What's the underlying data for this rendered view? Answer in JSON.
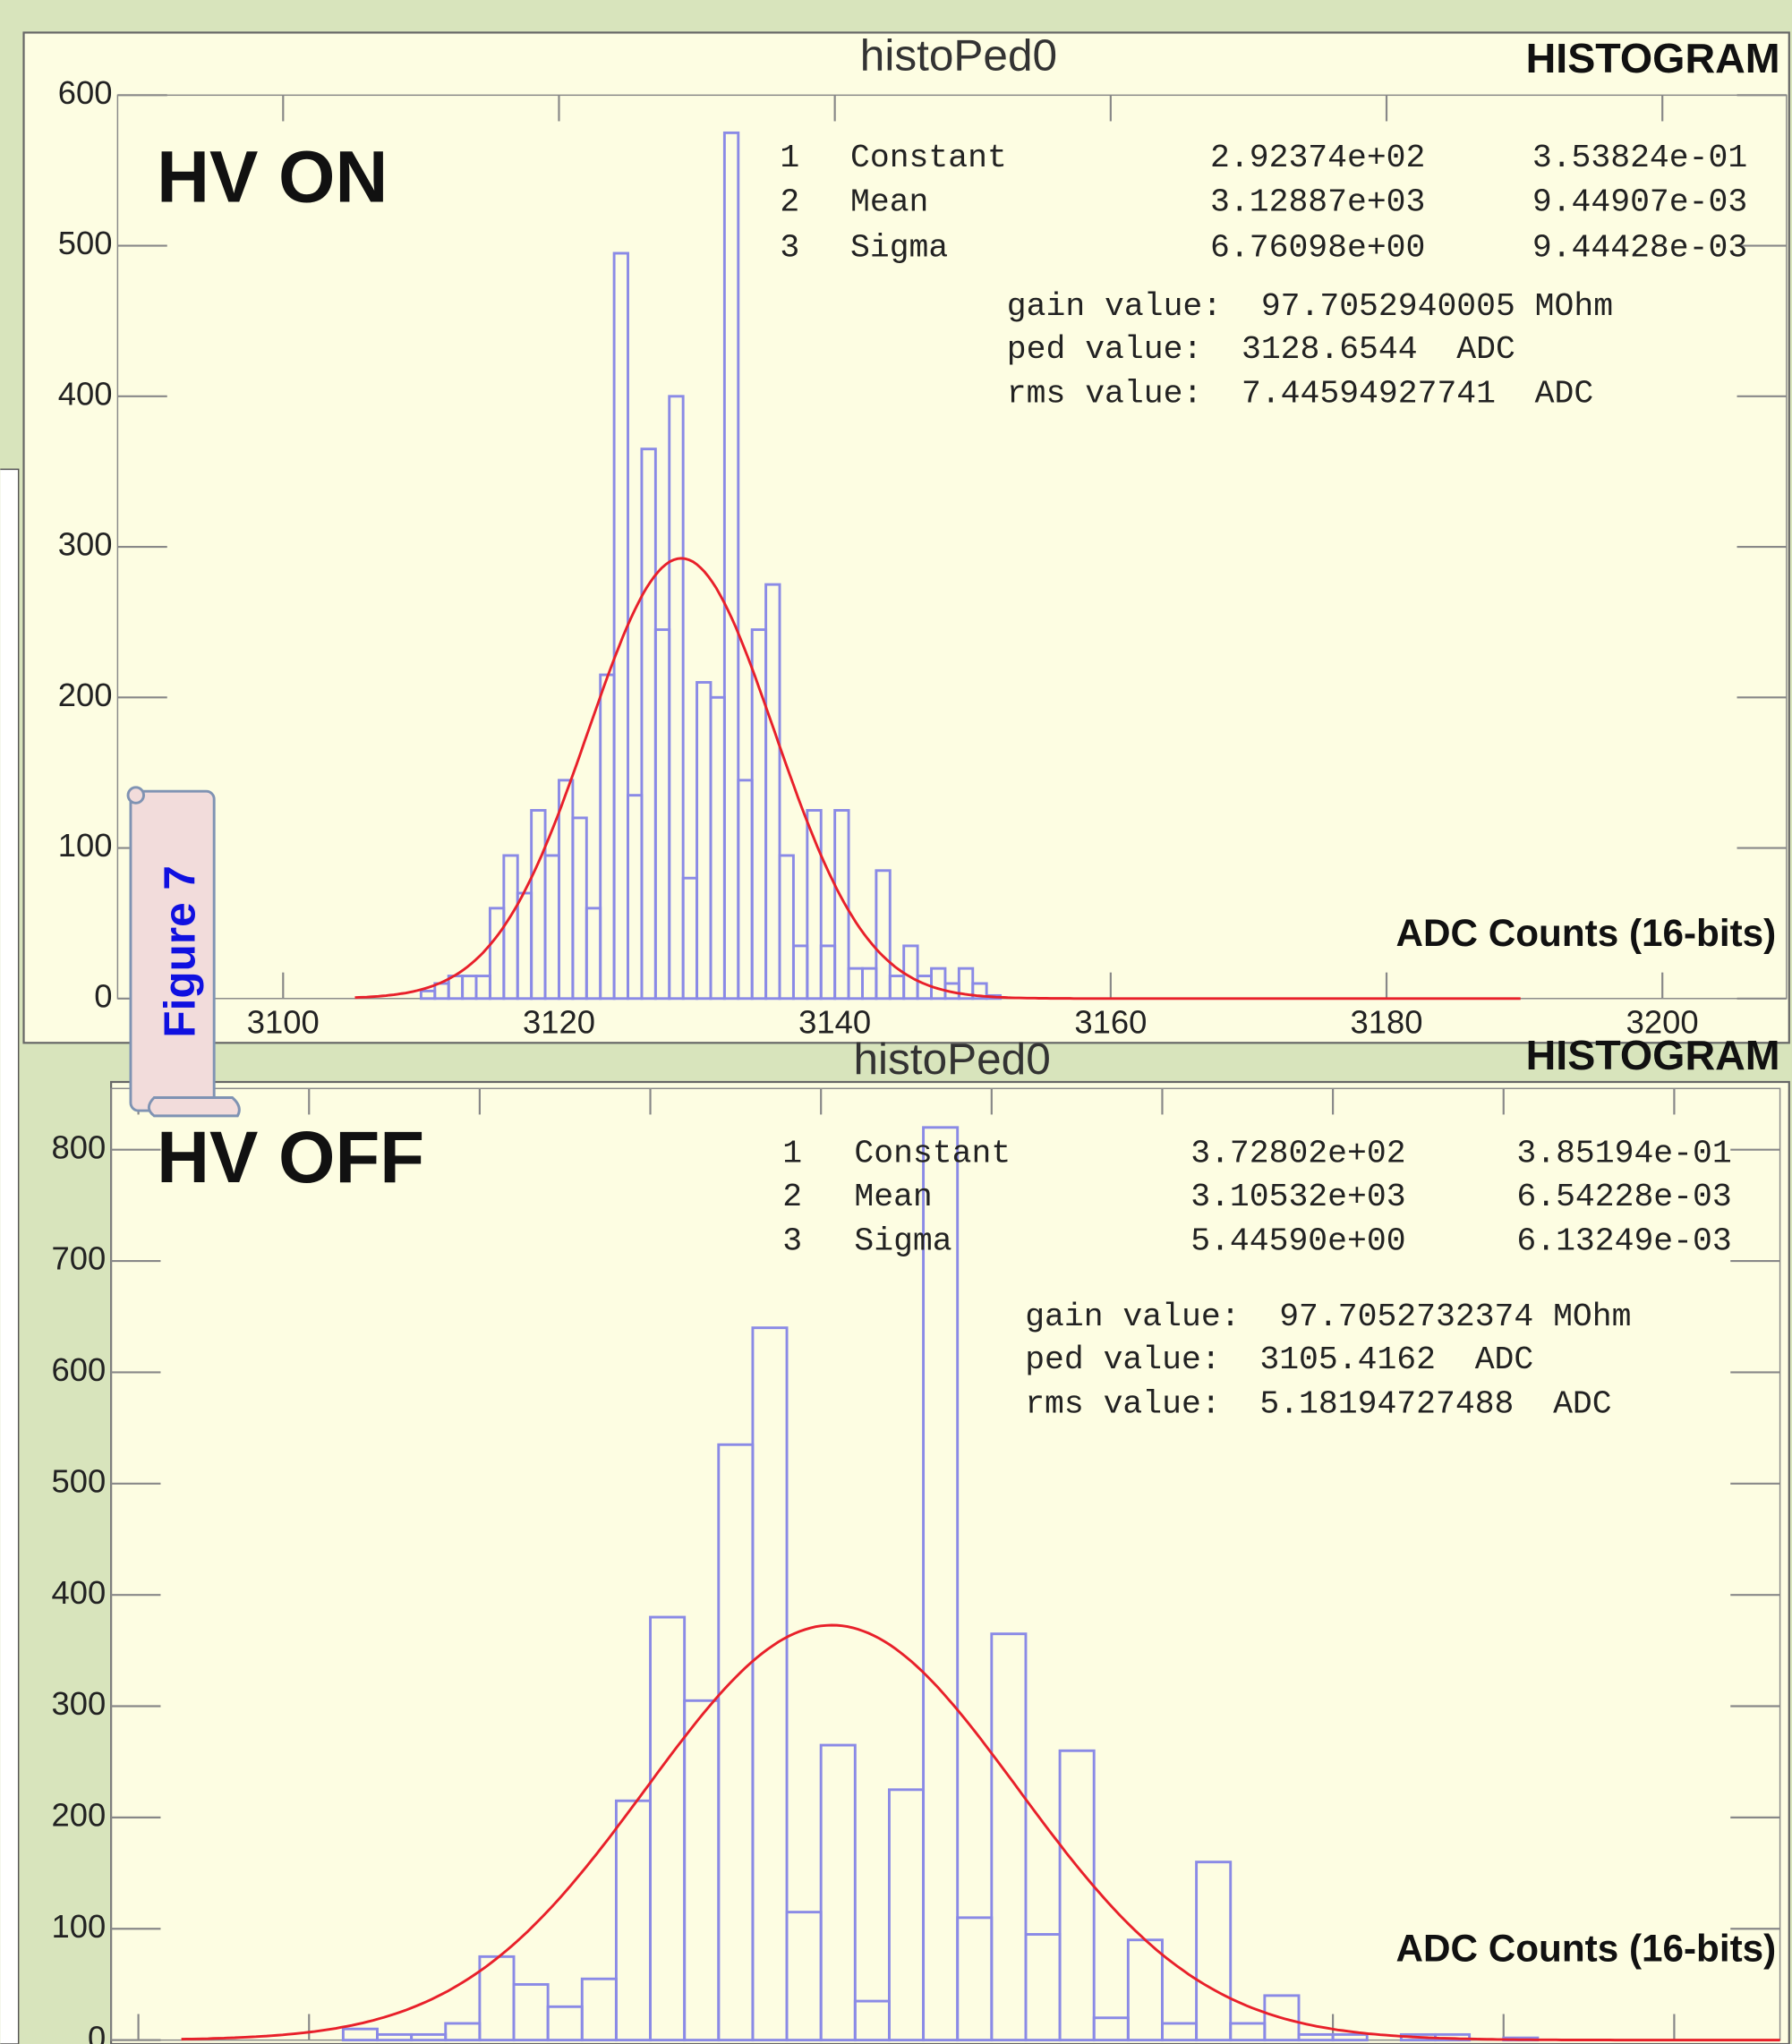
{
  "figure_label": "Figure 7",
  "chart_data": [
    {
      "type": "histogram",
      "title": "histoPed0",
      "badge": "HISTOGRAM",
      "label": "HV ON",
      "x_label": "ADC Counts (16-bits)",
      "bins": [
        3110,
        3111,
        3112,
        3113,
        3114,
        3115,
        3116,
        3117,
        3118,
        3119,
        3120,
        3121,
        3122,
        3123,
        3124,
        3125,
        3126,
        3127,
        3128,
        3129,
        3130,
        3131,
        3132,
        3133,
        3134,
        3135,
        3136,
        3137,
        3138,
        3139,
        3140,
        3141,
        3142,
        3143,
        3144,
        3145,
        3146,
        3147,
        3148,
        3149,
        3150,
        3151,
        3152
      ],
      "values": [
        5,
        10,
        15,
        15,
        15,
        60,
        95,
        70,
        125,
        95,
        145,
        120,
        60,
        215,
        495,
        135,
        365,
        245,
        400,
        80,
        210,
        200,
        575,
        145,
        245,
        275,
        95,
        35,
        125,
        35,
        125,
        20,
        20,
        85,
        15,
        35,
        15,
        20,
        10,
        20,
        10,
        2
      ],
      "color": "#8a8ae6",
      "fit_color": "#e8202a",
      "xlim": [
        3088,
        3209
      ],
      "xticks": [
        3100,
        3120,
        3140,
        3160,
        3180,
        3200
      ],
      "ylim": [
        0,
        600
      ],
      "yticks": [
        0,
        100,
        200,
        300,
        400,
        500,
        600
      ],
      "fit": [
        {
          "index": 1,
          "name": "Constant",
          "value": {
            "value": 292.374,
            "label": "2.92374e+02"
          },
          "error": {
            "value": 0.353824,
            "label": "3.53824e-01"
          }
        },
        {
          "index": 2,
          "name": "Mean",
          "value": {
            "value": 3128.87,
            "label": "3.12887e+03"
          },
          "error": {
            "value": 0.00944907,
            "label": "9.44907e-03"
          }
        },
        {
          "index": 3,
          "name": "Sigma",
          "value": {
            "value": 6.76098,
            "label": "6.76098e+00"
          },
          "error": {
            "value": 0.00944428,
            "label": "9.44428e-03"
          }
        }
      ],
      "annotations": [
        "gain value:  97.7052940005 MOhm",
        "ped value:  3128.6544  ADC",
        "rms value:  7.44594927741  ADC"
      ]
    },
    {
      "type": "histogram",
      "title": "histoPed0",
      "badge": "HISTOGRAM",
      "label": "HV OFF",
      "x_label": "ADC Counts (16-bits)",
      "bins": [
        3091,
        3092,
        3093,
        3094,
        3095,
        3096,
        3097,
        3098,
        3099,
        3100,
        3101,
        3102,
        3103,
        3104,
        3105,
        3106,
        3107,
        3108,
        3109,
        3110,
        3111,
        3112,
        3113,
        3114,
        3115,
        3116,
        3117,
        3118,
        3119,
        3120,
        3121,
        3122,
        3123,
        3124,
        3125,
        3126
      ],
      "values": [
        10,
        5,
        5,
        15,
        75,
        50,
        30,
        55,
        215,
        380,
        305,
        535,
        640,
        115,
        265,
        35,
        225,
        820,
        110,
        365,
        95,
        260,
        20,
        90,
        15,
        160,
        15,
        40,
        5,
        5,
        0,
        5,
        5,
        0,
        2
      ],
      "color": "#8a8ae6",
      "fit_color": "#e8202a",
      "xlim": [
        3084.2,
        3133.1
      ],
      "xticks": [
        3085,
        3090,
        3095,
        3100,
        3105,
        3110,
        3115,
        3120,
        3125,
        3130
      ],
      "ylim": [
        0,
        855
      ],
      "yticks": [
        0,
        100,
        200,
        300,
        400,
        500,
        600,
        700,
        800
      ],
      "fit": [
        {
          "index": 1,
          "name": "Constant",
          "value": {
            "value": 372.802,
            "label": "3.72802e+02"
          },
          "error": {
            "value": 0.385194,
            "label": "3.85194e-01"
          }
        },
        {
          "index": 2,
          "name": "Mean",
          "value": {
            "value": 3105.32,
            "label": "3.10532e+03"
          },
          "error": {
            "value": 0.00654228,
            "label": "6.54228e-03"
          }
        },
        {
          "index": 3,
          "name": "Sigma",
          "value": {
            "value": 5.4459,
            "label": "5.44590e+00"
          },
          "error": {
            "value": 0.00613249,
            "label": "6.13249e-03"
          }
        }
      ],
      "annotations": [
        "gain value:  97.7052732374 MOhm",
        "ped value:  3105.4162  ADC",
        "rms value:  5.18194727488  ADC"
      ]
    }
  ]
}
